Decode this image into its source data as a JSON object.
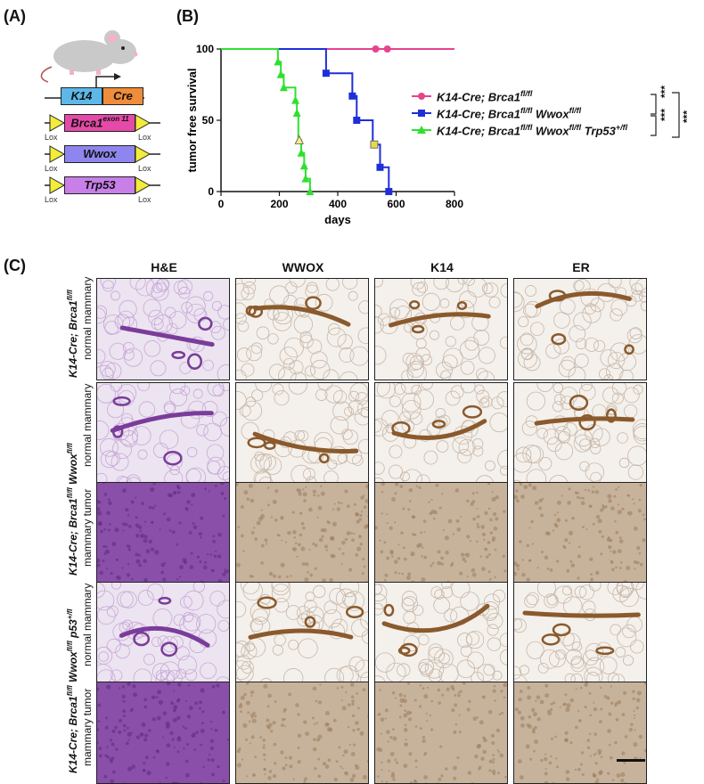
{
  "panelA": {
    "letter": "(A)",
    "promoter": "K14",
    "cre": "Cre",
    "cassettes": [
      {
        "gene": "Brca1",
        "sup": "exon 11",
        "color": "#e64aa8"
      },
      {
        "gene": "Wwox",
        "sup": "",
        "color": "#8e86ee"
      },
      {
        "gene": "Trp53",
        "sup": "",
        "color": "#c97fe8"
      }
    ],
    "lox_label": "Lox",
    "colors": {
      "k14": "#5bb8e8",
      "cre": "#f08c3a",
      "lox": "#f2ec3a"
    }
  },
  "panelB": {
    "letter": "(B)",
    "legend": [
      {
        "prefix": "K14-Cre; Brca1",
        "sup1": "fl/fl",
        "mid": "",
        "sup2": "",
        "tail": "",
        "sup3": ""
      },
      {
        "prefix": "K14-Cre; Brca1",
        "sup1": "fl/fl",
        "mid": " Wwox",
        "sup2": "fl/fl",
        "tail": "",
        "sup3": ""
      },
      {
        "prefix": "K14-Cre; Brca1",
        "sup1": "fl/fl",
        "mid": " Wwox",
        "sup2": "fl/fl",
        "tail": " Trp53",
        "sup3": "+/fl"
      }
    ],
    "significance": "***"
  },
  "chart_data": {
    "type": "line",
    "subtype": "kaplan-meier step",
    "xlabel": "days",
    "ylabel": "tumor free survival",
    "xlim": [
      0,
      800
    ],
    "ylim": [
      0,
      100
    ],
    "xticks": [
      0,
      200,
      400,
      600,
      800
    ],
    "yticks": [
      0,
      50,
      100
    ],
    "series": [
      {
        "name": "K14-Cre; Brca1fl/fl",
        "color": "#e8438e",
        "marker": "circle",
        "steps": [
          [
            0,
            100
          ],
          [
            800,
            100
          ]
        ],
        "points": [
          [
            530,
            100
          ],
          [
            570,
            100
          ]
        ]
      },
      {
        "name": "K14-Cre; Brca1fl/fl Wwoxfl/fl",
        "color": "#1e2fd9",
        "marker": "square",
        "steps": [
          [
            0,
            100
          ],
          [
            360,
            100
          ],
          [
            360,
            83
          ],
          [
            450,
            83
          ],
          [
            450,
            67
          ],
          [
            465,
            67
          ],
          [
            465,
            50
          ],
          [
            520,
            50
          ],
          [
            520,
            33
          ],
          [
            545,
            33
          ],
          [
            545,
            17
          ],
          [
            575,
            17
          ],
          [
            575,
            0
          ]
        ],
        "points": [
          [
            360,
            83
          ],
          [
            450,
            67
          ],
          [
            465,
            50
          ],
          [
            545,
            17
          ],
          [
            575,
            0
          ]
        ],
        "censored": [
          [
            525,
            33
          ]
        ]
      },
      {
        "name": "K14-Cre; Brca1fl/fl Wwoxfl/fl Trp53+/fl",
        "color": "#2fe02f",
        "marker": "triangle",
        "steps": [
          [
            0,
            100
          ],
          [
            195,
            100
          ],
          [
            195,
            91
          ],
          [
            205,
            91
          ],
          [
            205,
            82
          ],
          [
            215,
            82
          ],
          [
            215,
            73
          ],
          [
            255,
            73
          ],
          [
            255,
            64
          ],
          [
            260,
            64
          ],
          [
            260,
            55
          ],
          [
            265,
            55
          ],
          [
            265,
            36
          ],
          [
            275,
            36
          ],
          [
            275,
            27
          ],
          [
            285,
            27
          ],
          [
            285,
            18
          ],
          [
            290,
            18
          ],
          [
            290,
            9
          ],
          [
            305,
            9
          ],
          [
            305,
            0
          ]
        ],
        "points": [
          [
            195,
            91
          ],
          [
            205,
            82
          ],
          [
            215,
            73
          ],
          [
            255,
            64
          ],
          [
            260,
            55
          ],
          [
            275,
            27
          ],
          [
            285,
            18
          ],
          [
            290,
            9
          ],
          [
            305,
            0
          ]
        ],
        "censored": [
          [
            268,
            36
          ]
        ]
      }
    ]
  },
  "panelC": {
    "letter": "(C)",
    "columns": [
      "H&E",
      "WWOX",
      "K14",
      "ER"
    ],
    "groups": [
      {
        "genotype": "K14-Cre; Brca1",
        "sup": "fl/fl",
        "extra": "",
        "extra_sup": "",
        "tissues": [
          "normal mammary"
        ]
      },
      {
        "genotype": "K14-Cre; Brca1",
        "sup": "fl/fl",
        "extra": " Wwox",
        "extra_sup": "fl/fl",
        "tissues": [
          "normal mammary",
          "mammary tumor"
        ]
      },
      {
        "genotype": "K14-Cre; Brca1",
        "sup": "fl/fl",
        "extra": " Wwox",
        "extra_sup": "fl/fl",
        "extra2": " p53",
        "extra2_sup": "+/fl",
        "tissues": [
          "normal mammary",
          "mammary tumor"
        ]
      }
    ],
    "tile_colors": {
      "he_normal": "#ece4f0",
      "he_duct": "#7a3c9a",
      "he_tumor": "#8a4fa8",
      "ihc_normal": "#f4f0ec",
      "ihc_duct": "#8a5a2c",
      "ihc_tumor": "#c7b39c"
    }
  }
}
